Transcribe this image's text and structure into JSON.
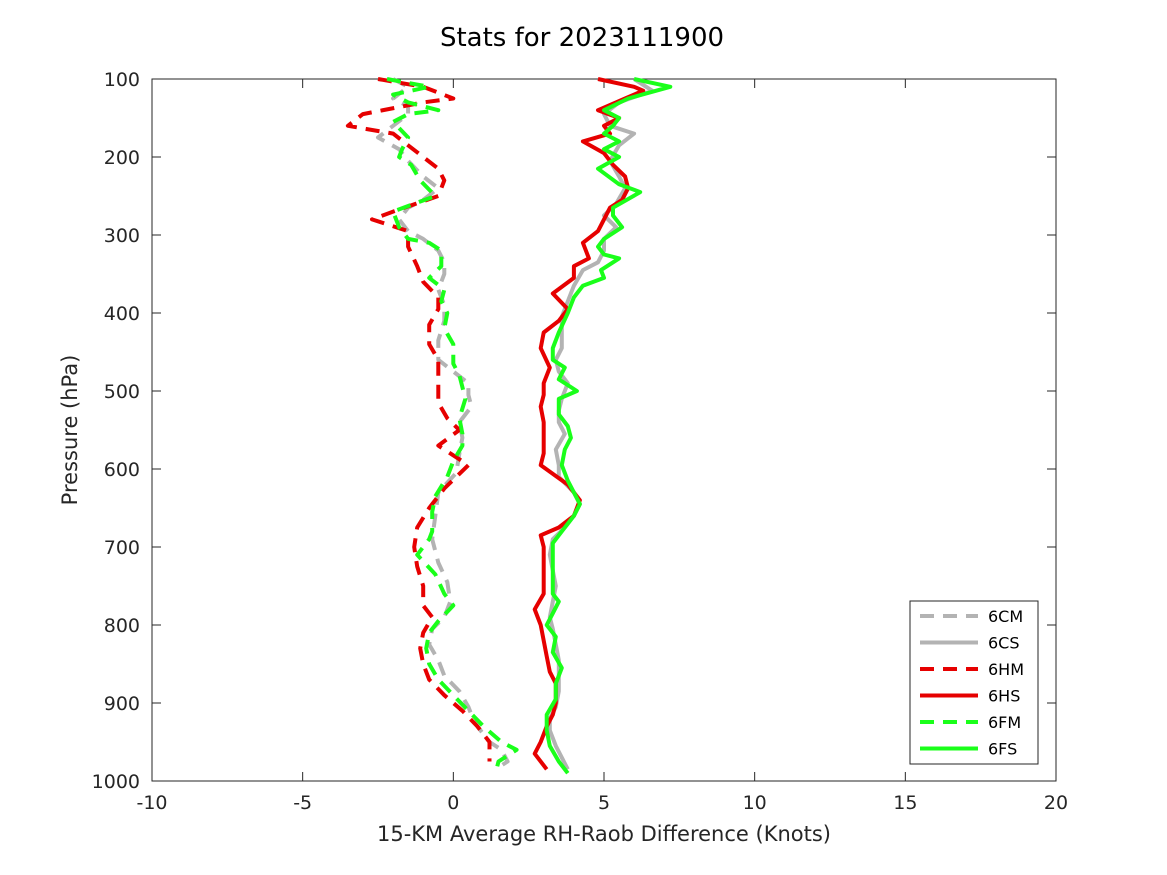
{
  "chart_data": {
    "type": "line",
    "title": "Stats for 2023111900",
    "xlabel": "15-KM Average RH-Raob Difference (Knots)",
    "ylabel": "Pressure (hPa)",
    "xlim": [
      -10,
      20
    ],
    "ylim": [
      100,
      1000
    ],
    "y_reversed": true,
    "xticks": [
      -10,
      -5,
      0,
      5,
      10,
      15,
      20
    ],
    "yticks": [
      100,
      200,
      300,
      400,
      500,
      600,
      700,
      800,
      900,
      1000
    ],
    "grid": false,
    "legend_position": "bottom-right",
    "series": [
      {
        "name": "6CM",
        "color": "#b3b3b3",
        "dashed": true,
        "points": [
          [
            -2.0,
            100
          ],
          [
            -1.5,
            110
          ],
          [
            -2.0,
            125
          ],
          [
            -1.5,
            135
          ],
          [
            -1.5,
            145
          ],
          [
            -2.0,
            160
          ],
          [
            -2.5,
            175
          ],
          [
            -1.8,
            190
          ],
          [
            -1.5,
            205
          ],
          [
            -1.0,
            225
          ],
          [
            -0.5,
            240
          ],
          [
            -1.0,
            255
          ],
          [
            -1.5,
            265
          ],
          [
            -1.8,
            280
          ],
          [
            -1.5,
            295
          ],
          [
            -1.0,
            305
          ],
          [
            -0.5,
            320
          ],
          [
            -0.3,
            335
          ],
          [
            -0.3,
            350
          ],
          [
            -0.5,
            370
          ],
          [
            -0.3,
            390
          ],
          [
            -0.3,
            410
          ],
          [
            -0.5,
            435
          ],
          [
            -0.5,
            460
          ],
          [
            0.0,
            475
          ],
          [
            0.5,
            490
          ],
          [
            0.5,
            505
          ],
          [
            0.6,
            520
          ],
          [
            0.2,
            540
          ],
          [
            0.3,
            560
          ],
          [
            0.2,
            580
          ],
          [
            0.1,
            605
          ],
          [
            -0.5,
            630
          ],
          [
            -0.6,
            660
          ],
          [
            -0.7,
            690
          ],
          [
            -0.5,
            720
          ],
          [
            -0.2,
            745
          ],
          [
            -0.1,
            770
          ],
          [
            -0.3,
            790
          ],
          [
            -0.7,
            805
          ],
          [
            -0.8,
            825
          ],
          [
            -0.5,
            845
          ],
          [
            -0.3,
            865
          ],
          [
            0.2,
            885
          ],
          [
            0.5,
            905
          ],
          [
            0.7,
            925
          ],
          [
            1.2,
            950
          ],
          [
            1.6,
            960
          ],
          [
            1.8,
            975
          ],
          [
            1.4,
            985
          ]
        ]
      },
      {
        "name": "6CS",
        "color": "#b3b3b3",
        "dashed": false,
        "points": [
          [
            6.0,
            100
          ],
          [
            6.6,
            115
          ],
          [
            5.5,
            130
          ],
          [
            5.0,
            145
          ],
          [
            5.2,
            160
          ],
          [
            6.0,
            170
          ],
          [
            5.5,
            185
          ],
          [
            5.2,
            205
          ],
          [
            5.5,
            225
          ],
          [
            5.7,
            240
          ],
          [
            5.4,
            260
          ],
          [
            5.0,
            275
          ],
          [
            5.4,
            290
          ],
          [
            5.0,
            305
          ],
          [
            5.0,
            320
          ],
          [
            4.8,
            335
          ],
          [
            4.3,
            345
          ],
          [
            4.0,
            365
          ],
          [
            3.8,
            385
          ],
          [
            3.6,
            405
          ],
          [
            3.6,
            425
          ],
          [
            3.6,
            445
          ],
          [
            3.4,
            460
          ],
          [
            3.5,
            475
          ],
          [
            3.8,
            490
          ],
          [
            3.6,
            510
          ],
          [
            3.5,
            525
          ],
          [
            3.5,
            540
          ],
          [
            3.7,
            555
          ],
          [
            3.4,
            575
          ],
          [
            3.5,
            595
          ],
          [
            3.5,
            610
          ],
          [
            4.0,
            630
          ],
          [
            4.2,
            645
          ],
          [
            4.0,
            660
          ],
          [
            3.7,
            675
          ],
          [
            3.3,
            690
          ],
          [
            3.2,
            710
          ],
          [
            3.3,
            730
          ],
          [
            3.4,
            750
          ],
          [
            3.3,
            770
          ],
          [
            3.2,
            790
          ],
          [
            3.3,
            805
          ],
          [
            3.4,
            825
          ],
          [
            3.5,
            845
          ],
          [
            3.5,
            865
          ],
          [
            3.5,
            885
          ],
          [
            3.4,
            905
          ],
          [
            3.2,
            920
          ],
          [
            3.2,
            935
          ],
          [
            3.4,
            955
          ],
          [
            3.6,
            970
          ],
          [
            3.8,
            985
          ]
        ]
      },
      {
        "name": "6HM",
        "color": "#e60000",
        "dashed": true,
        "points": [
          [
            -2.5,
            100
          ],
          [
            -1.0,
            110
          ],
          [
            0.0,
            125
          ],
          [
            -1.0,
            130
          ],
          [
            -3.0,
            145
          ],
          [
            -3.5,
            160
          ],
          [
            -2.0,
            170
          ],
          [
            -1.5,
            185
          ],
          [
            -1.0,
            200
          ],
          [
            -0.5,
            215
          ],
          [
            -0.3,
            230
          ],
          [
            -0.5,
            250
          ],
          [
            -2.0,
            270
          ],
          [
            -2.7,
            280
          ],
          [
            -1.5,
            295
          ],
          [
            -1.5,
            315
          ],
          [
            -1.2,
            340
          ],
          [
            -1.0,
            360
          ],
          [
            -0.5,
            380
          ],
          [
            -0.5,
            395
          ],
          [
            -0.8,
            415
          ],
          [
            -0.8,
            440
          ],
          [
            -0.5,
            460
          ],
          [
            -0.5,
            480
          ],
          [
            -0.5,
            495
          ],
          [
            -0.5,
            515
          ],
          [
            -0.2,
            535
          ],
          [
            0.2,
            550
          ],
          [
            -0.5,
            570
          ],
          [
            0.5,
            595
          ],
          [
            -0.3,
            625
          ],
          [
            -0.8,
            650
          ],
          [
            -1.2,
            675
          ],
          [
            -1.3,
            700
          ],
          [
            -1.2,
            725
          ],
          [
            -1.0,
            750
          ],
          [
            -1.0,
            775
          ],
          [
            -0.7,
            790
          ],
          [
            -1.0,
            810
          ],
          [
            -1.1,
            830
          ],
          [
            -1.0,
            850
          ],
          [
            -0.8,
            870
          ],
          [
            -0.3,
            890
          ],
          [
            0.3,
            910
          ],
          [
            0.8,
            930
          ],
          [
            1.2,
            950
          ],
          [
            1.2,
            960
          ],
          [
            1.2,
            975
          ]
        ]
      },
      {
        "name": "6HS",
        "color": "#e60000",
        "dashed": false,
        "points": [
          [
            4.8,
            100
          ],
          [
            6.0,
            110
          ],
          [
            6.3,
            115
          ],
          [
            5.7,
            125
          ],
          [
            4.8,
            140
          ],
          [
            5.5,
            150
          ],
          [
            5.0,
            160
          ],
          [
            5.2,
            170
          ],
          [
            4.3,
            180
          ],
          [
            5.0,
            195
          ],
          [
            5.3,
            210
          ],
          [
            5.7,
            225
          ],
          [
            5.8,
            240
          ],
          [
            5.6,
            255
          ],
          [
            5.2,
            265
          ],
          [
            5.0,
            280
          ],
          [
            4.8,
            295
          ],
          [
            4.3,
            310
          ],
          [
            4.5,
            330
          ],
          [
            4.0,
            340
          ],
          [
            4.0,
            355
          ],
          [
            3.3,
            375
          ],
          [
            3.8,
            395
          ],
          [
            3.5,
            410
          ],
          [
            3.0,
            425
          ],
          [
            2.9,
            445
          ],
          [
            3.2,
            470
          ],
          [
            3.0,
            490
          ],
          [
            3.0,
            505
          ],
          [
            2.9,
            520
          ],
          [
            3.0,
            540
          ],
          [
            3.0,
            560
          ],
          [
            3.0,
            580
          ],
          [
            2.9,
            595
          ],
          [
            3.8,
            620
          ],
          [
            4.2,
            640
          ],
          [
            4.0,
            660
          ],
          [
            3.5,
            675
          ],
          [
            2.9,
            685
          ],
          [
            3.0,
            700
          ],
          [
            3.0,
            730
          ],
          [
            3.0,
            760
          ],
          [
            2.7,
            780
          ],
          [
            2.9,
            800
          ],
          [
            3.0,
            820
          ],
          [
            3.1,
            840
          ],
          [
            3.2,
            860
          ],
          [
            3.4,
            875
          ],
          [
            3.4,
            900
          ],
          [
            3.3,
            915
          ],
          [
            3.1,
            930
          ],
          [
            2.9,
            950
          ],
          [
            2.7,
            965
          ],
          [
            3.1,
            985
          ]
        ]
      },
      {
        "name": "6FM",
        "color": "#1aff1a",
        "dashed": true,
        "points": [
          [
            -2.2,
            100
          ],
          [
            -0.8,
            110
          ],
          [
            -2.0,
            120
          ],
          [
            -1.5,
            130
          ],
          [
            -0.5,
            140
          ],
          [
            -1.5,
            145
          ],
          [
            -2.0,
            155
          ],
          [
            -1.5,
            175
          ],
          [
            -1.7,
            190
          ],
          [
            -1.8,
            200
          ],
          [
            -1.4,
            210
          ],
          [
            -1.1,
            230
          ],
          [
            -0.6,
            250
          ],
          [
            -2.0,
            270
          ],
          [
            -1.8,
            290
          ],
          [
            -1.5,
            305
          ],
          [
            -0.8,
            310
          ],
          [
            -0.4,
            320
          ],
          [
            -0.4,
            340
          ],
          [
            -0.8,
            355
          ],
          [
            -0.3,
            370
          ],
          [
            -0.4,
            385
          ],
          [
            -0.2,
            400
          ],
          [
            -0.3,
            420
          ],
          [
            0.0,
            440
          ],
          [
            0.0,
            465
          ],
          [
            0.2,
            480
          ],
          [
            0.3,
            495
          ],
          [
            0.4,
            510
          ],
          [
            0.2,
            535
          ],
          [
            0.3,
            555
          ],
          [
            0.3,
            570
          ],
          [
            0.0,
            590
          ],
          [
            -0.2,
            610
          ],
          [
            -0.6,
            635
          ],
          [
            -0.7,
            655
          ],
          [
            -0.7,
            680
          ],
          [
            -0.8,
            690
          ],
          [
            -1.2,
            710
          ],
          [
            -0.6,
            735
          ],
          [
            -0.3,
            760
          ],
          [
            0.0,
            775
          ],
          [
            -0.5,
            795
          ],
          [
            -0.8,
            810
          ],
          [
            -0.9,
            830
          ],
          [
            -0.8,
            850
          ],
          [
            -0.5,
            870
          ],
          [
            0.0,
            890
          ],
          [
            0.5,
            910
          ],
          [
            1.0,
            930
          ],
          [
            1.6,
            950
          ],
          [
            2.1,
            960
          ],
          [
            1.5,
            975
          ],
          [
            1.4,
            990
          ]
        ]
      },
      {
        "name": "6FS",
        "color": "#1aff1a",
        "dashed": false,
        "points": [
          [
            6.0,
            100
          ],
          [
            7.2,
            110
          ],
          [
            5.8,
            125
          ],
          [
            5.0,
            140
          ],
          [
            5.5,
            150
          ],
          [
            5.3,
            160
          ],
          [
            5.0,
            170
          ],
          [
            5.5,
            180
          ],
          [
            5.0,
            190
          ],
          [
            5.5,
            200
          ],
          [
            4.8,
            215
          ],
          [
            5.5,
            235
          ],
          [
            6.2,
            245
          ],
          [
            5.3,
            265
          ],
          [
            5.3,
            275
          ],
          [
            5.6,
            290
          ],
          [
            5.0,
            305
          ],
          [
            4.8,
            315
          ],
          [
            5.0,
            325
          ],
          [
            5.5,
            330
          ],
          [
            4.9,
            345
          ],
          [
            5.0,
            355
          ],
          [
            4.3,
            365
          ],
          [
            4.0,
            380
          ],
          [
            3.8,
            400
          ],
          [
            3.5,
            425
          ],
          [
            3.3,
            445
          ],
          [
            3.3,
            460
          ],
          [
            3.7,
            470
          ],
          [
            3.5,
            485
          ],
          [
            4.1,
            500
          ],
          [
            3.5,
            510
          ],
          [
            3.5,
            530
          ],
          [
            3.8,
            545
          ],
          [
            3.9,
            560
          ],
          [
            3.7,
            575
          ],
          [
            3.6,
            595
          ],
          [
            3.8,
            615
          ],
          [
            4.0,
            630
          ],
          [
            4.2,
            645
          ],
          [
            4.0,
            660
          ],
          [
            3.6,
            680
          ],
          [
            3.3,
            695
          ],
          [
            3.3,
            715
          ],
          [
            3.3,
            740
          ],
          [
            3.3,
            760
          ],
          [
            3.5,
            770
          ],
          [
            3.3,
            785
          ],
          [
            3.1,
            800
          ],
          [
            3.4,
            815
          ],
          [
            3.3,
            835
          ],
          [
            3.6,
            855
          ],
          [
            3.4,
            875
          ],
          [
            3.4,
            895
          ],
          [
            3.1,
            915
          ],
          [
            3.1,
            935
          ],
          [
            3.2,
            955
          ],
          [
            3.5,
            975
          ],
          [
            3.8,
            990
          ]
        ]
      }
    ]
  }
}
